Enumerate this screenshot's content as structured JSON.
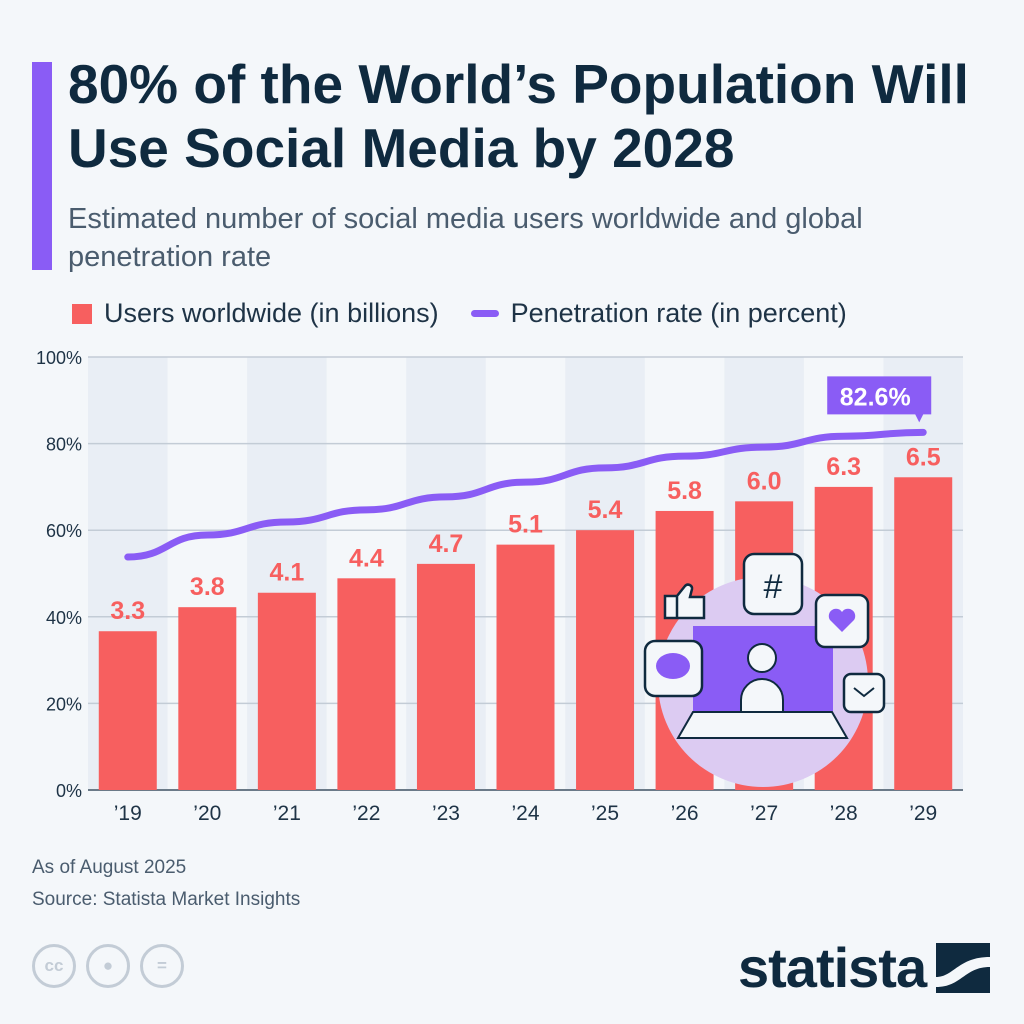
{
  "header": {
    "title": "80% of the World’s Population Will Use Social Media by 2028",
    "subtitle": "Estimated number of social media users worldwide and global penetration rate"
  },
  "colors": {
    "bars": "#f75f5f",
    "line": "#8a5cf5",
    "accent": "#8a5cf5",
    "text": "#0f2a3f"
  },
  "chart_data": {
    "type": "bar",
    "categories": [
      "’19",
      "’20",
      "’21",
      "’22",
      "’23",
      "’24",
      "’25",
      "’26",
      "’27",
      "’28",
      "’29"
    ],
    "series": [
      {
        "name": "Users worldwide (in billions)",
        "type": "bar",
        "values": [
          3.3,
          3.8,
          4.1,
          4.4,
          4.7,
          5.1,
          5.4,
          5.8,
          6.0,
          6.3,
          6.5
        ],
        "data_labels": [
          "3.3",
          "3.8",
          "4.1",
          "4.4",
          "4.7",
          "5.1",
          "5.4",
          "5.8",
          "6.0",
          "6.3",
          "6.5"
        ]
      },
      {
        "name": "Penetration rate (in percent)",
        "type": "line",
        "values": [
          53.8,
          58.9,
          61.9,
          64.7,
          67.7,
          71.1,
          74.4,
          77.1,
          79.2,
          81.7,
          82.6
        ],
        "callout": "82.6%"
      }
    ],
    "yaxis": {
      "ticks": [
        "0%",
        "20%",
        "40%",
        "60%",
        "80%",
        "100%"
      ],
      "tick_values": [
        0,
        20,
        40,
        60,
        80,
        100
      ],
      "range": [
        0,
        100
      ]
    },
    "bar_axis_range": [
      0,
      9
    ],
    "grid": true,
    "legend_placement": "top"
  },
  "footer": {
    "note": "As of August 2025",
    "source": "Source: Statista Market Insights",
    "license_icons": [
      "cc",
      "by",
      "="
    ],
    "brand": "statista"
  }
}
